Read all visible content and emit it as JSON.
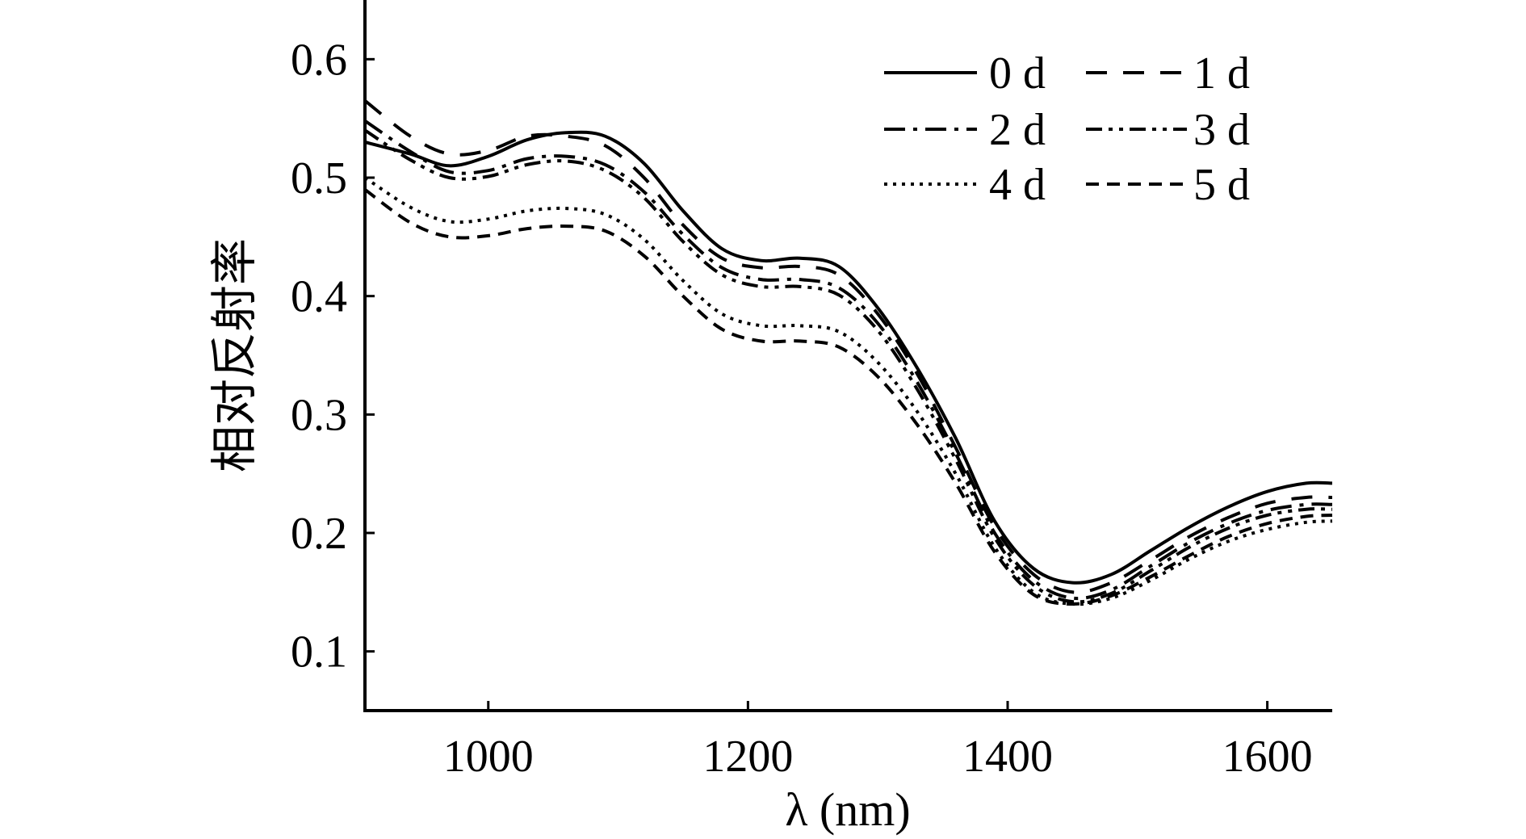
{
  "chart_data": {
    "type": "line",
    "title": "",
    "xlabel": "λ (nm)",
    "ylabel": "相对反射率",
    "xlim": [
      905,
      1650
    ],
    "ylim": [
      0.05,
      0.65
    ],
    "xticks": [
      1000,
      1200,
      1400,
      1600
    ],
    "yticks": [
      0.1,
      0.2,
      0.3,
      0.4,
      0.5,
      0.6
    ],
    "xtick_labels": [
      "1000",
      "1200",
      "1400",
      "1600"
    ],
    "ytick_labels": [
      "0.1",
      "0.2",
      "0.3",
      "0.4",
      "0.5",
      "0.6"
    ],
    "grid": false,
    "legend_position": "top-right",
    "x": [
      905,
      940,
      970,
      1000,
      1030,
      1060,
      1090,
      1120,
      1150,
      1180,
      1210,
      1240,
      1270,
      1300,
      1330,
      1360,
      1390,
      1420,
      1450,
      1480,
      1510,
      1540,
      1570,
      1600,
      1630,
      1650
    ],
    "series": [
      {
        "name": "0 d",
        "dash": "solid",
        "values": [
          0.53,
          0.52,
          0.51,
          0.518,
          0.532,
          0.538,
          0.535,
          0.512,
          0.472,
          0.44,
          0.43,
          0.432,
          0.425,
          0.39,
          0.34,
          0.28,
          0.21,
          0.17,
          0.158,
          0.165,
          0.185,
          0.205,
          0.222,
          0.235,
          0.242,
          0.242
        ]
      },
      {
        "name": "1 d",
        "dash": "longdash",
        "values": [
          0.565,
          0.535,
          0.52,
          0.523,
          0.535,
          0.535,
          0.527,
          0.5,
          0.46,
          0.432,
          0.424,
          0.425,
          0.418,
          0.385,
          0.335,
          0.272,
          0.205,
          0.165,
          0.15,
          0.158,
          0.177,
          0.197,
          0.213,
          0.225,
          0.23,
          0.23
        ]
      },
      {
        "name": "2 d",
        "dash": "dashdot",
        "values": [
          0.548,
          0.522,
          0.505,
          0.506,
          0.516,
          0.518,
          0.511,
          0.488,
          0.452,
          0.424,
          0.414,
          0.414,
          0.407,
          0.377,
          0.328,
          0.267,
          0.2,
          0.16,
          0.145,
          0.152,
          0.172,
          0.192,
          0.208,
          0.219,
          0.224,
          0.224
        ]
      },
      {
        "name": "3 d",
        "dash": "dashdotdot",
        "values": [
          0.54,
          0.515,
          0.5,
          0.501,
          0.511,
          0.514,
          0.506,
          0.483,
          0.446,
          0.418,
          0.408,
          0.408,
          0.401,
          0.371,
          0.322,
          0.262,
          0.196,
          0.156,
          0.142,
          0.149,
          0.168,
          0.188,
          0.204,
          0.215,
          0.22,
          0.22
        ]
      },
      {
        "name": "4 d",
        "dash": "dotted",
        "values": [
          0.5,
          0.475,
          0.463,
          0.465,
          0.472,
          0.474,
          0.469,
          0.448,
          0.413,
          0.385,
          0.375,
          0.375,
          0.37,
          0.344,
          0.303,
          0.25,
          0.188,
          0.15,
          0.14,
          0.145,
          0.16,
          0.178,
          0.193,
          0.203,
          0.209,
          0.21
        ]
      },
      {
        "name": "5 d",
        "dash": "dashed",
        "values": [
          0.49,
          0.462,
          0.45,
          0.451,
          0.457,
          0.459,
          0.455,
          0.434,
          0.4,
          0.372,
          0.362,
          0.362,
          0.357,
          0.332,
          0.292,
          0.242,
          0.184,
          0.148,
          0.14,
          0.147,
          0.163,
          0.181,
          0.197,
          0.208,
          0.214,
          0.215
        ]
      }
    ]
  }
}
